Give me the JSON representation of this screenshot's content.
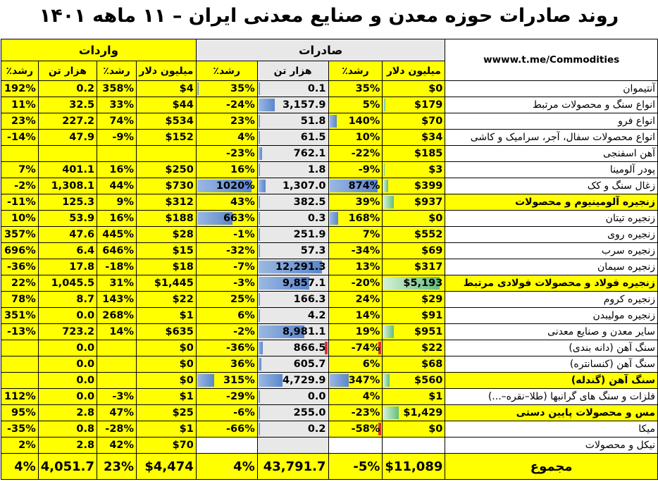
{
  "title": "روند صادرات حوزه معدن و صنایع معدنی ایران – ۱۱ ماهه ۱۴۰۱",
  "source": "wwww.t.me/Commodities",
  "headers": {
    "imports": "واردات",
    "exports": "صادرات",
    "growth": "رشد٪",
    "kton": "هزار تن",
    "musd": "میلیون دلار"
  },
  "rows": [
    {
      "name": "آنتیموان",
      "ex_usd": "$0",
      "ex_g1": "35%",
      "ex_ton": "0.1",
      "ex_g2": "35%",
      "im_usd": "$4",
      "im_g1": "358%",
      "im_ton": "0.2",
      "im_g2": "192%"
    },
    {
      "name": "انواع سنگ و محصولات مرتبط",
      "ex_usd": "$179",
      "ex_g1": "5%",
      "ex_ton": "3,157.9",
      "ex_g2": "-24%",
      "im_usd": "$44",
      "im_g1": "33%",
      "im_ton": "32.5",
      "im_g2": "11%"
    },
    {
      "name": "انواع فرو",
      "ex_usd": "$70",
      "ex_g1": "140%",
      "ex_ton": "51.8",
      "ex_g2": "23%",
      "im_usd": "$534",
      "im_g1": "74%",
      "im_ton": "227.2",
      "im_g2": "23%"
    },
    {
      "name": "انواع محصولات سفال، آجر، سرامیک و کاشی",
      "ex_usd": "$34",
      "ex_g1": "10%",
      "ex_ton": "61.5",
      "ex_g2": "4%",
      "im_usd": "$152",
      "im_g1": "-9%",
      "im_ton": "47.9",
      "im_g2": "-14%"
    },
    {
      "name": "آهن اسفنجی",
      "ex_usd": "$185",
      "ex_g1": "-22%",
      "ex_ton": "762.1",
      "ex_g2": "-23%",
      "im_usd": "",
      "im_g1": "",
      "im_ton": "",
      "im_g2": ""
    },
    {
      "name": "پودر آلومینا",
      "ex_usd": "$3",
      "ex_g1": "-9%",
      "ex_ton": "1.8",
      "ex_g2": "16%",
      "im_usd": "$250",
      "im_g1": "16%",
      "im_ton": "401.1",
      "im_g2": "7%"
    },
    {
      "name": "زغال سنگ و کک",
      "ex_usd": "$399",
      "ex_g1": "874%",
      "ex_ton": "1,307.0",
      "ex_g2": "1020%",
      "im_usd": "$730",
      "im_g1": "44%",
      "im_ton": "1,308.1",
      "im_g2": "-2%"
    },
    {
      "name": "زنجیره آلومینیوم و محصولات",
      "ex_usd": "$937",
      "ex_g1": "39%",
      "ex_ton": "382.5",
      "ex_g2": "43%",
      "im_usd": "$312",
      "im_g1": "9%",
      "im_ton": "125.3",
      "im_g2": "-11%"
    },
    {
      "name": "زنجیره تیتان",
      "ex_usd": "$0",
      "ex_g1": "168%",
      "ex_ton": "0.3",
      "ex_g2": "663%",
      "im_usd": "$188",
      "im_g1": "16%",
      "im_ton": "53.9",
      "im_g2": "10%"
    },
    {
      "name": "زنجیره روی",
      "ex_usd": "$552",
      "ex_g1": "7%",
      "ex_ton": "251.9",
      "ex_g2": "-1%",
      "im_usd": "$28",
      "im_g1": "445%",
      "im_ton": "47.6",
      "im_g2": "357%"
    },
    {
      "name": "زنجیره سرب",
      "ex_usd": "$69",
      "ex_g1": "-34%",
      "ex_ton": "57.3",
      "ex_g2": "-32%",
      "im_usd": "$15",
      "im_g1": "646%",
      "im_ton": "6.4",
      "im_g2": "696%"
    },
    {
      "name": "زنجیره سیمان",
      "ex_usd": "$317",
      "ex_g1": "13%",
      "ex_ton": "12,291.3",
      "ex_g2": "-7%",
      "im_usd": "$18",
      "im_g1": "-18%",
      "im_ton": "17.8",
      "im_g2": "-36%"
    },
    {
      "name": "زنجیره فولاد و محصولات فولادی مرتبط",
      "ex_usd": "$5,193",
      "ex_g1": "-20%",
      "ex_ton": "9,857.1",
      "ex_g2": "-3%",
      "im_usd": "$1,445",
      "im_g1": "31%",
      "im_ton": "1,045.5",
      "im_g2": "22%"
    },
    {
      "name": "زنجیره کروم",
      "ex_usd": "$29",
      "ex_g1": "24%",
      "ex_ton": "166.3",
      "ex_g2": "25%",
      "im_usd": "$22",
      "im_g1": "143%",
      "im_ton": "8.7",
      "im_g2": "78%"
    },
    {
      "name": "زنجیره مولیبدن",
      "ex_usd": "$91",
      "ex_g1": "14%",
      "ex_ton": "4.2",
      "ex_g2": "6%",
      "im_usd": "$1",
      "im_g1": "268%",
      "im_ton": "0.0",
      "im_g2": "351%"
    },
    {
      "name": "سایر معدن و صنایع معدنی",
      "ex_usd": "$951",
      "ex_g1": "19%",
      "ex_ton": "8,981.1",
      "ex_g2": "-2%",
      "im_usd": "$635",
      "im_g1": "14%",
      "im_ton": "723.2",
      "im_g2": "-13%"
    },
    {
      "name": "سنگ آهن (دانه بندی)",
      "ex_usd": "$22",
      "ex_g1": "-74%",
      "ex_ton": "866.5",
      "ex_g2": "-36%",
      "im_usd": "$0",
      "im_g1": "",
      "im_ton": "0.0",
      "im_g2": ""
    },
    {
      "name": "سنگ آهن (کنسانتره)",
      "ex_usd": "$68",
      "ex_g1": "6%",
      "ex_ton": "605.7",
      "ex_g2": "36%",
      "im_usd": "$0",
      "im_g1": "",
      "im_ton": "0.0",
      "im_g2": ""
    },
    {
      "name": "سنگ آهن (گندله)",
      "ex_usd": "$560",
      "ex_g1": "347%",
      "ex_ton": "4,729.9",
      "ex_g2": "315%",
      "im_usd": "$0",
      "im_g1": "",
      "im_ton": "0.0",
      "im_g2": ""
    },
    {
      "name": "فلزات و سنگ های گرانبها (طلا–نقره–...)",
      "ex_usd": "$1",
      "ex_g1": "4%",
      "ex_ton": "0.0",
      "ex_g2": "-29%",
      "im_usd": "$1",
      "im_g1": "-3%",
      "im_ton": "0.0",
      "im_g2": "112%"
    },
    {
      "name": "مس و محصولات پایین دستی",
      "ex_usd": "$1,429",
      "ex_g1": "-23%",
      "ex_ton": "255.0",
      "ex_g2": "-6%",
      "im_usd": "$25",
      "im_g1": "47%",
      "im_ton": "2.8",
      "im_g2": "95%"
    },
    {
      "name": "میکا",
      "ex_usd": "$0",
      "ex_g1": "-58%",
      "ex_ton": "0.2",
      "ex_g2": "-66%",
      "im_usd": "$1",
      "im_g1": "-28%",
      "im_ton": "0.8",
      "im_g2": "-35%"
    },
    {
      "name": "نیکل و محصولات",
      "ex_usd": "",
      "ex_g1": "",
      "ex_ton": "",
      "ex_g2": "",
      "im_usd": "$70",
      "im_g1": "42%",
      "im_ton": "2.8",
      "im_g2": "2%"
    }
  ],
  "total": {
    "name": "مجموع",
    "ex_usd": "$11,089",
    "ex_g1": "-5%",
    "ex_ton": "43,791.7",
    "ex_g2": "4%",
    "im_usd": "$4,474",
    "im_g1": "23%",
    "im_ton": "4,051.7",
    "im_g2": "4%"
  },
  "styles": {
    "highlight_rows": [
      7,
      12,
      18,
      20
    ],
    "export_usd_bars": {
      "1": 0.03,
      "5": 0.02,
      "6": 0.08,
      "7": 0.18,
      "12": 1.0,
      "15": 0.18,
      "18": 0.11,
      "20": 0.27
    },
    "export_growth_bars": {
      "2": 0.16,
      "6": 1.0,
      "8": 0.19,
      "18": 0.4
    },
    "export_growth_red": [
      16,
      21
    ],
    "export_ton_bars": {
      "0": 0.0,
      "1": 0.26,
      "2": 0.03,
      "3": 0.03,
      "4": 0.06,
      "5": 0.02,
      "6": 0.11,
      "7": 0.03,
      "8": 0.02,
      "9": 0.02,
      "10": 0.03,
      "11": 1.0,
      "12": 0.8,
      "13": 0.02,
      "14": 0.02,
      "15": 0.73,
      "16": 0.07,
      "17": 0.05,
      "18": 0.38,
      "19": 0.0,
      "20": 0.02,
      "21": 0.02
    },
    "export_ton_red": [
      16
    ],
    "export_growth2_bars": {
      "0": 0.02,
      "6": 1.0,
      "8": 0.65,
      "18": 0.31
    }
  }
}
